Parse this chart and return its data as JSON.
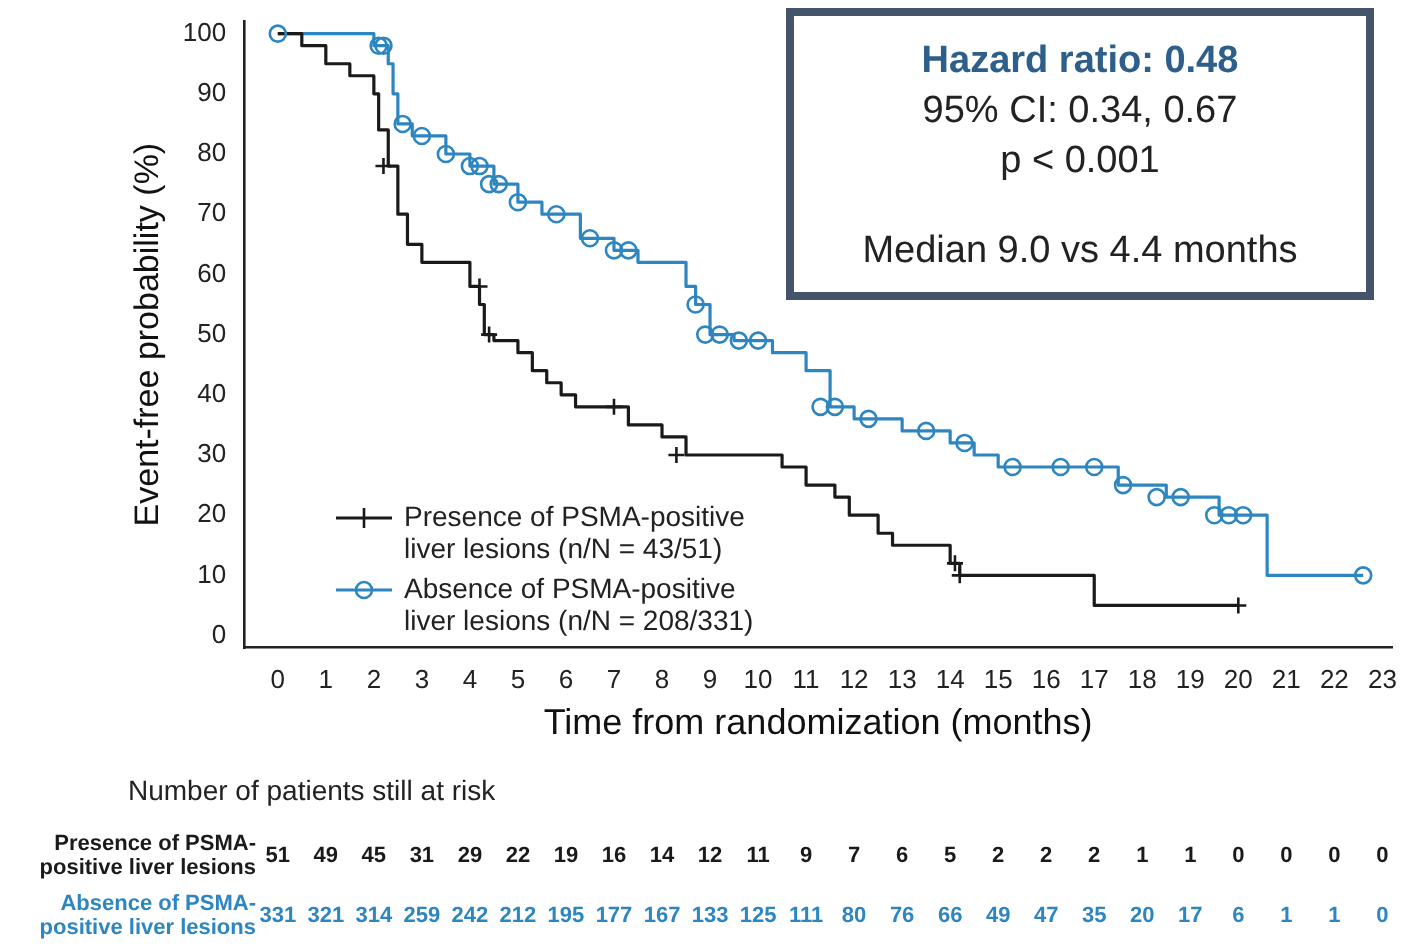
{
  "chart_data": {
    "type": "step",
    "xlabel": "Time from randomization (months)",
    "ylabel": "Event-free probability (%)",
    "xlim": [
      -0.7,
      23.2
    ],
    "xticks": [
      0,
      1,
      2,
      3,
      4,
      5,
      6,
      7,
      8,
      9,
      10,
      11,
      12,
      13,
      14,
      15,
      16,
      17,
      18,
      19,
      20,
      21,
      22,
      23
    ],
    "ylim": [
      -2,
      102
    ],
    "yticks": [
      0,
      10,
      20,
      30,
      40,
      50,
      60,
      70,
      80,
      90,
      100
    ],
    "grid": false,
    "legend": "bottom left",
    "line_style": "solid",
    "series": [
      {
        "name": "Presence of PSMA-positive liver lesions (n/N = 43/51)",
        "color": "#1a1a1a",
        "x": [
          0,
          0.5,
          1,
          1.5,
          2,
          2.1,
          2.3,
          2.5,
          2.7,
          3,
          4,
          4.2,
          4.3,
          4.5,
          5,
          5.3,
          5.6,
          5.9,
          6.2,
          7,
          7.3,
          8,
          8.5,
          10.5,
          11,
          11.6,
          11.9,
          12.5,
          12.8,
          14,
          14.2,
          17,
          20
        ],
        "values": [
          100,
          98,
          95,
          93,
          90,
          84,
          78,
          70,
          65,
          62,
          58,
          55,
          50,
          49,
          47,
          44,
          42,
          40,
          38,
          38,
          35,
          33,
          30,
          28,
          25,
          23,
          20,
          17,
          15,
          12,
          10,
          5,
          5
        ]
      },
      {
        "name": "Absence of PSMA-positive liver lesions (n/N = 208/331)",
        "color": "#2e86c1",
        "x": [
          0,
          2,
          2.3,
          2.4,
          2.5,
          2.8,
          3.5,
          4,
          4.5,
          5,
          5.5,
          6.3,
          7,
          7.5,
          8.5,
          8.7,
          9,
          9.5,
          10.3,
          11,
          11.5,
          12,
          13,
          14,
          14.5,
          15,
          16.5,
          17.5,
          18.5,
          19.6,
          20.5,
          20.6,
          22.6
        ],
        "values": [
          100,
          98,
          95,
          90,
          85,
          83,
          80,
          78,
          75,
          72,
          70,
          66,
          64,
          62,
          58,
          55,
          50,
          49,
          47,
          44,
          38,
          36,
          34,
          32,
          30,
          28,
          28,
          25,
          23,
          20,
          20,
          10,
          10
        ]
      },
      {
        "type": "scatter",
        "color": "#1a1a1a",
        "marker": "cross",
        "x": [
          2.2,
          4.2,
          4.4,
          7,
          8.3,
          14.1,
          14.2,
          20
        ],
        "values": [
          78,
          58,
          50,
          38,
          30,
          12,
          10,
          5
        ]
      },
      {
        "type": "scatter",
        "color": "#2e86c1",
        "marker": "circle",
        "x": [
          0,
          2.1,
          2.2,
          2.6,
          3,
          3.5,
          4,
          4.2,
          4.4,
          4.6,
          5,
          5.8,
          6.5,
          7,
          7.3,
          8.7,
          8.9,
          9.2,
          9.6,
          10,
          11.3,
          11.6,
          12.3,
          13.5,
          14.3,
          15.3,
          16.3,
          17,
          17.6,
          18.3,
          18.8,
          19.5,
          19.8,
          20.1,
          22.6
        ],
        "values": [
          100,
          98,
          98,
          85,
          83,
          80,
          78,
          78,
          75,
          75,
          72,
          70,
          66,
          64,
          64,
          55,
          50,
          50,
          49,
          49,
          38,
          38,
          36,
          34,
          32,
          28,
          28,
          28,
          25,
          23,
          23,
          20,
          20,
          20,
          10
        ]
      }
    ],
    "annotations": [
      "Hazard ratio: 0.48",
      "95% CI: 0.34, 0.67",
      "p < 0.001",
      "Median 9.0 vs 4.4 months",
      "Number of patients still at risk",
      "Presence of PSMA-positive liver lesions",
      "51 49 45 31 29 22 19 16 14 12 11 9 7 6 5 2 2 2 1 1 0 0 0 0",
      "Absence of PSMA-positive liver lesions",
      "331 321 314 259 242 212 195 177 167 133 125 111 80 76 66 49 47 35 20 17 6 1 1 0"
    ]
  }
}
